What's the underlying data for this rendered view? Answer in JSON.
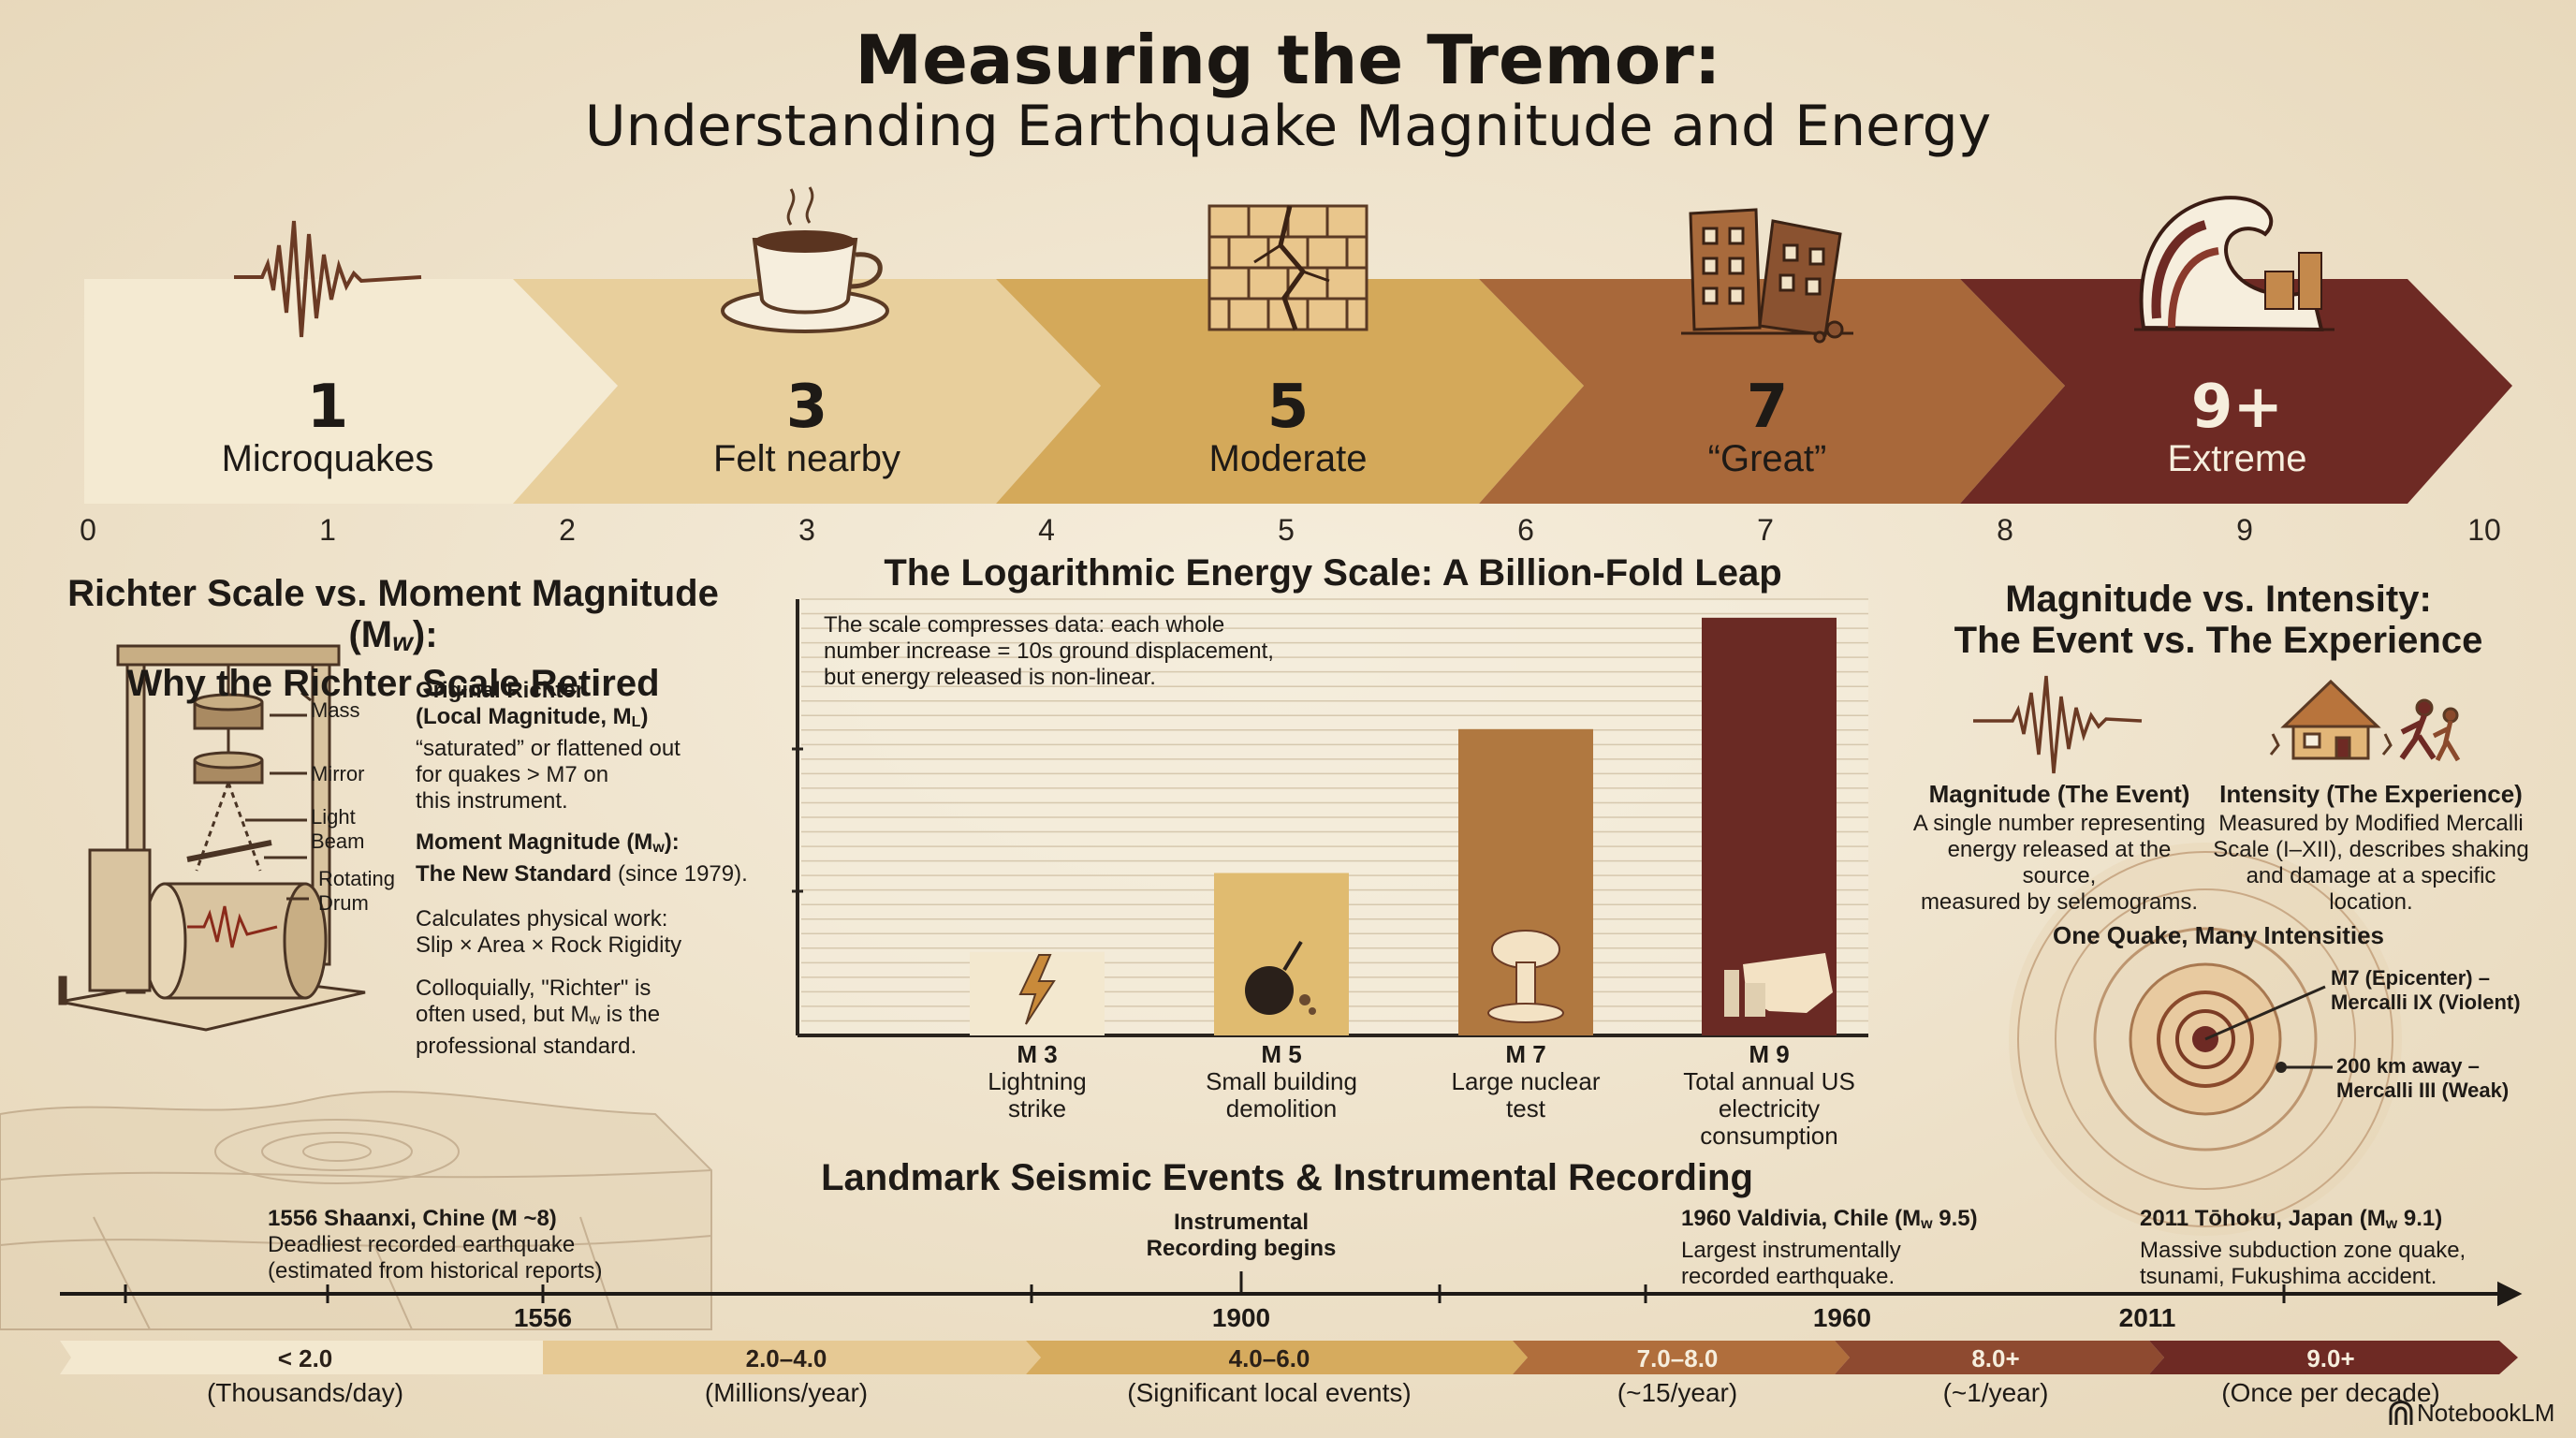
{
  "title": {
    "line1": "Measuring the Tremor:",
    "line2": "Understanding Earthquake Magnitude and Energy"
  },
  "colors": {
    "stage1": "#f4ead2",
    "stage2": "#e8cf9c",
    "stage3": "#d4a95a",
    "stage4": "#a8683a",
    "stage5": "#6e2a24",
    "ink": "#5b3a24"
  },
  "stages": [
    {
      "number": "1",
      "label": "Microquakes",
      "icon": "seismic-wave-icon"
    },
    {
      "number": "3",
      "label": "Felt nearby",
      "icon": "coffee-cup-icon"
    },
    {
      "number": "5",
      "label": "Moderate",
      "icon": "cracked-wall-icon"
    },
    {
      "number": "7",
      "label": "“Great”",
      "icon": "collapsing-buildings-icon"
    },
    {
      "number": "9+",
      "label": "Extreme",
      "icon": "tsunami-wave-icon"
    }
  ],
  "scale_ticks": [
    "0",
    "1",
    "2",
    "3",
    "4",
    "5",
    "6",
    "7",
    "8",
    "9",
    "10"
  ],
  "richter": {
    "title_line1": "Richter Scale vs. Moment Magnitude (M",
    "title_sub": "w",
    "title_end": "):",
    "title_line2": "Why the Richter Scale Retired",
    "labels": {
      "mass": "Mass",
      "mirror": "Mirror",
      "light": "Light",
      "beam": "Beam",
      "rotating": "Rotating",
      "drum": "Drum"
    },
    "orig_title_1": "Original Richter",
    "orig_title_2": "(Local Magnitude, M",
    "orig_title_sub": "L",
    "orig_title_3": ")",
    "orig_body": [
      "“saturated” or flattened out",
      "for quakes > M7 on",
      "this instrument."
    ],
    "moment_title": "Moment Magnitude (M",
    "moment_sub": "w",
    "moment_title_end": "):",
    "moment_standard": "The New Standard",
    "moment_since": " (since 1979).",
    "calc": [
      "Calculates physical work:",
      "Slip × Area × Rock Rigidity"
    ],
    "colloq_1": "Colloquially, \"Richter\" is",
    "colloq_2a": "often used, but M",
    "colloq_2sub": "w",
    "colloq_2b": " is the",
    "colloq_3": "professional standard."
  },
  "energy": {
    "title": "The Logarithmic Energy Scale: A Billion-Fold Leap",
    "note": [
      "The scale compresses data: each whole",
      "number increase = 10s ground displacement,",
      "but energy released is non-linear."
    ]
  },
  "chart_data": {
    "type": "bar",
    "title": "The Logarithmic Energy Scale: A Billion-Fold Leap",
    "categories": [
      "M 3",
      "M 5",
      "M 7",
      "M 9"
    ],
    "category_notes": [
      [
        "Lightning",
        "strike"
      ],
      [
        "Small building",
        "demolition"
      ],
      [
        "Large nuclear",
        "test"
      ],
      [
        "Total annual US",
        "electricity consumption"
      ]
    ],
    "values": [
      0.9,
      1.75,
      3.3,
      4.5
    ],
    "ylim": [
      0,
      4.7
    ],
    "grid": true,
    "bar_colors": [
      "#f3e8cf",
      "#e0bb70",
      "#b07840",
      "#6a2a24"
    ],
    "icons": [
      "lightning-icon",
      "wrecking-ball-icon",
      "mushroom-cloud-icon",
      "power-plant-map-icon"
    ]
  },
  "intensity": {
    "title_line1": "Magnitude vs. Intensity:",
    "title_line2": "The Event vs. The Experience",
    "magnitude_title": "Magnitude (The Event)",
    "magnitude_body": [
      "A single number representing",
      "energy released at the source,",
      "measured by selemograms."
    ],
    "intensity_title": "Intensity (The Experience)",
    "intensity_body": [
      "Measured by Modified Mercalli",
      "Scale (I–XII), describes shaking",
      "and damage at a specific location."
    ],
    "one_quake": "One Quake, Many Intensities",
    "epicenter_1": "M7 (Epicenter) –",
    "epicenter_2": "Mercalli IX (Violent)",
    "away_1": "200 km away –",
    "away_2": "Mercalli III (Weak)"
  },
  "timeline": {
    "title": "Landmark Seismic Events & Instrumental Recording",
    "events": [
      {
        "title": "1556 Shaanxi, Chine (M ~8)",
        "body": [
          "Deadliest recorded earthquake",
          "(estimated from historical reports)"
        ]
      },
      {
        "title_1": "Instrumental",
        "title_2": "Recording begins"
      },
      {
        "title_a": "1960 Valdivia, Chile (M",
        "sub": "w",
        "title_b": " 9.5)",
        "body": [
          "Largest instrumentally",
          "recorded earthquake."
        ]
      },
      {
        "title_a": "2011 Tōhoku, Japan (M",
        "sub": "w",
        "title_b": " 9.1)",
        "body": [
          "Massive subduction zone quake,",
          "tsunami, Fukushima accident."
        ]
      }
    ],
    "years": [
      "1556",
      "1900",
      "1960",
      "2011"
    ]
  },
  "frequency": [
    {
      "range": "< 2.0",
      "freq": "(Thousands/day)"
    },
    {
      "range": "2.0–4.0",
      "freq": "(Millions/year)"
    },
    {
      "range": "4.0–6.0",
      "freq": "(Significant local events)"
    },
    {
      "range": "7.0–8.0",
      "freq": "(~15/year)"
    },
    {
      "range": "8.0+",
      "freq": "(~1/year)"
    },
    {
      "range": "9.0+",
      "freq": "(Once per decade)"
    }
  ],
  "brand": "NotebookLM"
}
